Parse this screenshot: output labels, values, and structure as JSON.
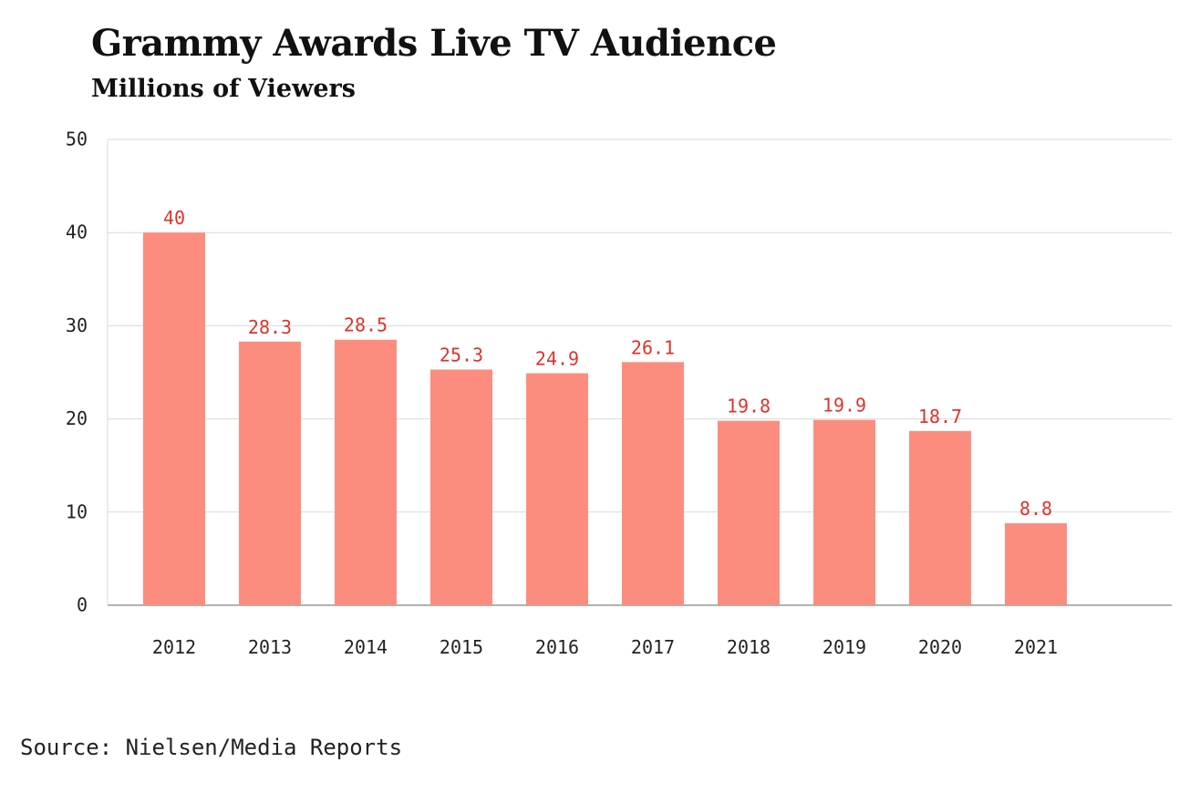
{
  "chart_data": {
    "type": "bar",
    "title": "Grammy Awards Live TV Audience",
    "subtitle": "Millions of Viewers",
    "categories": [
      "2012",
      "2013",
      "2014",
      "2015",
      "2016",
      "2017",
      "2018",
      "2019",
      "2020",
      "2021"
    ],
    "values": [
      40,
      28.3,
      28.5,
      25.3,
      24.9,
      26.1,
      19.8,
      19.9,
      18.7,
      8.8
    ],
    "data_labels": [
      "40",
      "28.3",
      "28.5",
      "25.3",
      "24.9",
      "26.1",
      "19.8",
      "19.9",
      "18.7",
      "8.8"
    ],
    "y_ticks": [
      "0",
      "10",
      "20",
      "30",
      "40",
      "50"
    ],
    "ylim": [
      0,
      50
    ],
    "grid": true,
    "source": "Source: Nielsen/Media Reports"
  },
  "colors": {
    "bar": "#fc8d7e",
    "label": "#e0322a",
    "grid": "#d9d9d9",
    "axis": "#999999"
  }
}
